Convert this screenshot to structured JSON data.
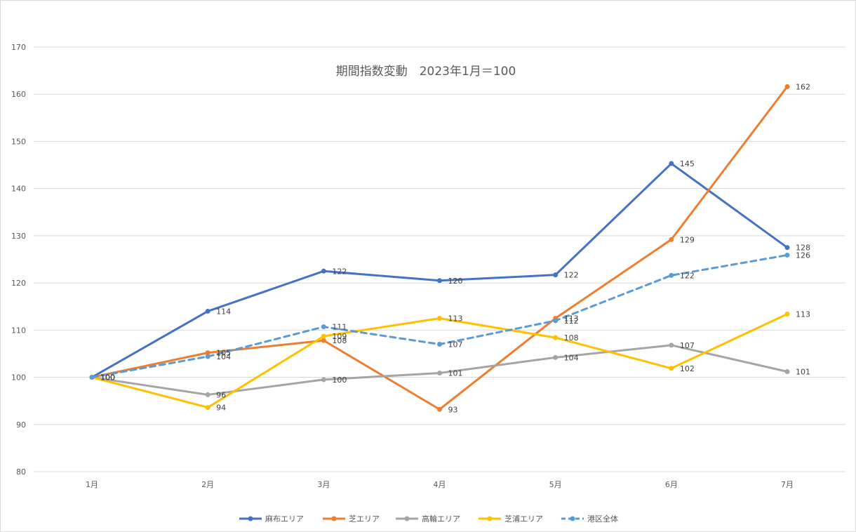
{
  "chart_data": {
    "type": "line",
    "title": "期間指数変動　2023年1月＝100",
    "xlabel": "",
    "ylabel": "",
    "categories": [
      "1月",
      "2月",
      "3月",
      "4月",
      "5月",
      "6月",
      "7月"
    ],
    "ylim": [
      80,
      170
    ],
    "yticks": [
      80,
      90,
      100,
      110,
      120,
      130,
      140,
      150,
      160,
      170
    ],
    "grid": true,
    "legend_position": "bottom",
    "series": [
      {
        "name": "麻布エリア",
        "color": "#4472C4",
        "dashed": false,
        "values": [
          100,
          114,
          122.5,
          120.5,
          121.7,
          145.3,
          127.5
        ],
        "labels": [
          "100",
          "114",
          "122",
          "120",
          "122",
          "145",
          "128"
        ]
      },
      {
        "name": "芝エリア",
        "color": "#ED7D31",
        "dashed": false,
        "values": [
          100,
          105.2,
          107.8,
          93.2,
          112.5,
          129.2,
          161.6
        ],
        "labels": [
          "100",
          "105",
          "108",
          "93",
          "113",
          "129",
          "162"
        ]
      },
      {
        "name": "高輪エリア",
        "color": "#A5A5A5",
        "dashed": false,
        "values": [
          100,
          96.3,
          99.5,
          100.9,
          104.2,
          106.8,
          101.2
        ],
        "labels": [
          "100",
          "96",
          "100",
          "101",
          "104",
          "107",
          "101"
        ]
      },
      {
        "name": "芝浦エリア",
        "color": "#FFC000",
        "dashed": false,
        "values": [
          100,
          93.6,
          108.7,
          112.5,
          108.4,
          101.9,
          113.4
        ],
        "labels": [
          "100",
          "94",
          "109",
          "113",
          "108",
          "102",
          "113"
        ]
      },
      {
        "name": "港区全体",
        "color": "#5B9BD5",
        "dashed": true,
        "values": [
          100,
          104.4,
          110.7,
          107,
          112,
          121.6,
          125.9
        ],
        "labels": [
          "100",
          "104",
          "111",
          "107",
          "112",
          "122",
          "126"
        ]
      }
    ]
  }
}
